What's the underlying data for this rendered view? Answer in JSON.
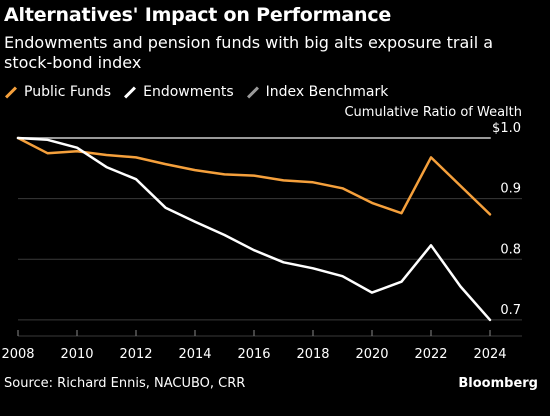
{
  "title": "Alternatives' Impact on Performance",
  "subtitle": "Endowments and pension funds with big alts exposure trail a stock-bond index",
  "source": "Source: Richard Ennis, NACUBO, CRR",
  "brand": "Bloomberg",
  "chart_data": {
    "type": "line",
    "ylabel": "Cumulative Ratio of Wealth",
    "ylim": [
      0.68,
      1.0
    ],
    "xlim": [
      2008,
      2024
    ],
    "x_ticks": [
      "2008",
      "2010",
      "2012",
      "2014",
      "2016",
      "2018",
      "2020",
      "2022",
      "2024"
    ],
    "y_ticks": [
      {
        "value": 1.0,
        "label": "$1.0"
      },
      {
        "value": 0.9,
        "label": "0.9"
      },
      {
        "value": 0.8,
        "label": "0.8"
      },
      {
        "value": 0.7,
        "label": "0.7"
      }
    ],
    "grid": true,
    "legend_position": "top-left",
    "series": [
      {
        "name": "Public Funds",
        "color": "#f5a03c",
        "x": [
          2008,
          2009,
          2010,
          2011,
          2012,
          2013,
          2014,
          2015,
          2016,
          2017,
          2018,
          2019,
          2020,
          2021,
          2022,
          2023,
          2024
        ],
        "y": [
          1.0,
          0.975,
          0.978,
          0.972,
          0.968,
          0.957,
          0.947,
          0.94,
          0.938,
          0.93,
          0.927,
          0.917,
          0.893,
          0.876,
          0.968,
          0.921,
          0.874
        ]
      },
      {
        "name": "Endowments",
        "color": "#ffffff",
        "x": [
          2008,
          2009,
          2010,
          2011,
          2012,
          2013,
          2014,
          2015,
          2016,
          2017,
          2018,
          2019,
          2020,
          2021,
          2022,
          2023,
          2024
        ],
        "y": [
          1.0,
          0.997,
          0.984,
          0.952,
          0.932,
          0.885,
          0.862,
          0.84,
          0.815,
          0.795,
          0.785,
          0.772,
          0.745,
          0.763,
          0.823,
          0.755,
          0.7
        ]
      },
      {
        "name": "Index Benchmark",
        "color": "#9a9a9a",
        "x": [
          2008,
          2024
        ],
        "y": [
          1.0,
          1.0
        ]
      }
    ]
  }
}
